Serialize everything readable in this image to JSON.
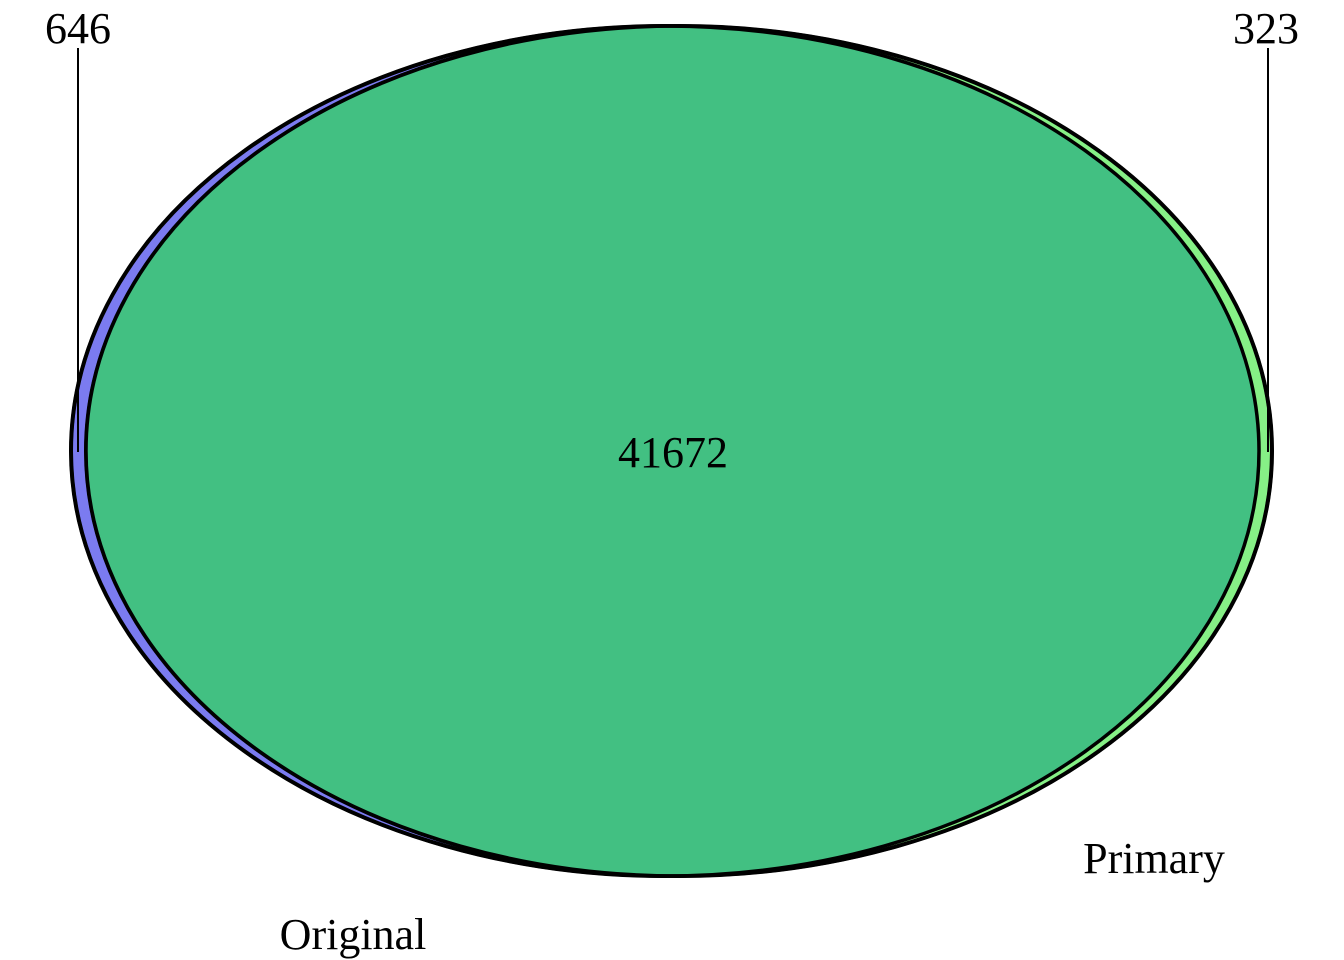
{
  "chart_data": {
    "type": "venn",
    "sets": [
      {
        "name": "Original",
        "only_count": "646",
        "color": "#7b7bf0"
      },
      {
        "name": "Primary",
        "only_count": "323",
        "color": "#86f086"
      }
    ],
    "intersection": {
      "count": "41672",
      "color": "#42c082"
    },
    "outline_color": "#000000"
  }
}
